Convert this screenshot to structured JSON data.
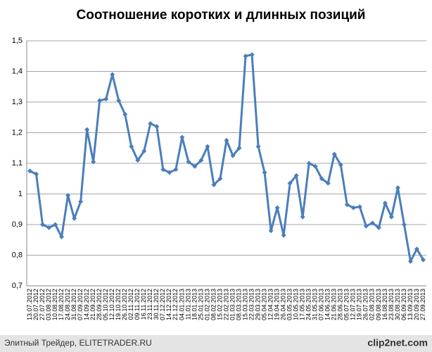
{
  "chart_data": {
    "type": "line",
    "title": "Соотношение коротких и длинных позиций",
    "categories": [
      "13.07.2012",
      "20.07.2012",
      "27.07.2012",
      "03.08.2012",
      "10.08.2012",
      "17.08.2012",
      "24.08.2012",
      "31.08.2012",
      "07.09.2012",
      "14.09.2012",
      "21.09.2012",
      "28.09.2012",
      "05.10.2012",
      "12.10.2012",
      "19.10.2012",
      "26.10.2012",
      "02.11.2012",
      "09.11.2012",
      "16.11.2012",
      "23.11.2012",
      "30.11.2012",
      "07.12.2012",
      "14.12.2012",
      "21.12.2012",
      "04.01.2013",
      "11.01.2013",
      "18.01.2013",
      "25.01.2013",
      "01.02.2013",
      "08.02.2013",
      "15.02.2013",
      "22.02.2013",
      "01.03.2013",
      "08.03.2013",
      "15.03.2013",
      "22.03.2013",
      "29.03.2013",
      "05.04.2013",
      "12.04.2013",
      "19.04.2013",
      "26.04.2013",
      "03.05.2013",
      "10.05.2013",
      "17.05.2013",
      "24.05.2013",
      "31.05.2013",
      "07.06.2013",
      "14.06.2013",
      "21.06.2013",
      "28.06.2013",
      "05.07.2013",
      "12.07.2013",
      "19.07.2013",
      "26.07.2013",
      "02.08.2013",
      "09.08.2013",
      "16.08.2013",
      "23.08.2013",
      "30.08.2013",
      "06.09.2013",
      "13.09.2013",
      "20.09.2013",
      "27.09.2013"
    ],
    "values": [
      1.075,
      1.065,
      0.9,
      0.89,
      0.9,
      0.86,
      0.995,
      0.92,
      0.975,
      1.21,
      1.105,
      1.305,
      1.31,
      1.39,
      1.305,
      1.26,
      1.155,
      1.11,
      1.14,
      1.23,
      1.22,
      1.08,
      1.07,
      1.08,
      1.185,
      1.105,
      1.09,
      1.11,
      1.155,
      1.03,
      1.05,
      1.175,
      1.125,
      1.15,
      1.45,
      1.455,
      1.155,
      1.07,
      0.88,
      0.955,
      0.865,
      1.035,
      1.06,
      0.925,
      1.1,
      1.09,
      1.05,
      1.035,
      1.13,
      1.095,
      0.965,
      0.955,
      0.958,
      0.895,
      0.905,
      0.89,
      0.97,
      0.925,
      1.02,
      0.9,
      0.78,
      0.82,
      0.785
    ],
    "color": "#4a7ebb",
    "ylim": [
      0.7,
      1.5
    ],
    "yticks": [
      {
        "value": 0.7,
        "label": "0,7"
      },
      {
        "value": 0.8,
        "label": "0,8"
      },
      {
        "value": 0.9,
        "label": "0,9"
      },
      1,
      {
        "value": 1.1,
        "label": "1,1"
      },
      {
        "value": 1.2,
        "label": "1,2"
      },
      {
        "value": 1.3,
        "label": "1,3"
      },
      {
        "value": 1.4,
        "label": "1,4"
      },
      {
        "value": 1.5,
        "label": "1,5"
      }
    ],
    "grid": true
  },
  "footer": "Элитный Трейдер, ELITETRADER.RU",
  "watermark": "clip2net.com"
}
